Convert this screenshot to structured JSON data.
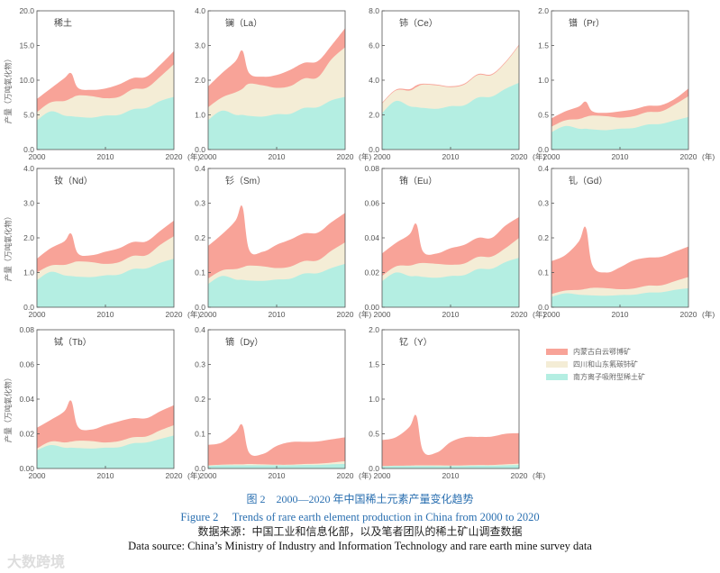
{
  "chart_data": {
    "type": "area",
    "stacked": true,
    "x": [
      2000,
      2002,
      2004,
      2005,
      2006,
      2008,
      2010,
      2012,
      2014,
      2016,
      2018,
      2020
    ],
    "x_tick_labels": [
      "2000",
      "2010",
      "2020"
    ],
    "x_unit": "(年)",
    "ylabel": "产量（万吨氧化物）",
    "legend": {
      "placement": "right",
      "entries": [
        {
          "key": "IM",
          "label": "内蒙古白云鄂博矿",
          "color": "#f8a398"
        },
        {
          "key": "SC",
          "label": "四川和山东氟碳铈矿",
          "color": "#f4edd6"
        },
        {
          "key": "S",
          "label": "南方离子吸附型稀土矿",
          "color": "#b4eee2"
        }
      ]
    },
    "panels": [
      {
        "title": "稀土",
        "ylim": [
          0,
          20
        ],
        "yticks": [
          "0.0",
          "5.0",
          "10.0",
          "15.0",
          "20.0"
        ],
        "S": [
          4.2,
          5.5,
          4.9,
          4.8,
          4.7,
          4.6,
          4.9,
          5.0,
          5.8,
          6.0,
          7.0,
          7.6
        ],
        "SC": [
          1.2,
          1.3,
          2.1,
          2.6,
          3.1,
          3.1,
          2.5,
          2.6,
          2.9,
          2.9,
          3.5,
          4.7
        ],
        "IM": [
          1.9,
          2.0,
          3.3,
          3.6,
          1.1,
          0.9,
          1.4,
          1.8,
          1.6,
          1.6,
          1.7,
          1.9
        ]
      },
      {
        "title": "镧（La）",
        "ylim": [
          0,
          4
        ],
        "yticks": [
          "0.0",
          "1.0",
          "2.0",
          "3.0",
          "4.0"
        ],
        "S": [
          0.85,
          1.12,
          1.0,
          1.0,
          0.97,
          0.95,
          1.02,
          1.03,
          1.2,
          1.22,
          1.42,
          1.52
        ],
        "SC": [
          0.37,
          0.38,
          0.65,
          0.75,
          0.93,
          0.9,
          0.76,
          0.8,
          0.85,
          0.86,
          1.18,
          1.43
        ],
        "IM": [
          0.6,
          0.7,
          0.9,
          1.1,
          0.3,
          0.25,
          0.37,
          0.47,
          0.45,
          0.47,
          0.4,
          0.55
        ]
      },
      {
        "title": "铈（Ce）",
        "ylim": [
          0,
          8
        ],
        "yticks": [
          "0.0",
          "2.0",
          "4.0",
          "6.0",
          "8.0"
        ],
        "S": [
          2.1,
          2.8,
          2.5,
          2.45,
          2.4,
          2.35,
          2.5,
          2.55,
          3.0,
          3.05,
          3.5,
          3.85
        ],
        "SC": [
          0.55,
          0.6,
          0.9,
          1.15,
          1.35,
          1.35,
          1.1,
          1.2,
          1.3,
          1.25,
          1.5,
          2.15
        ],
        "IM": [
          0.05,
          0.05,
          0.08,
          0.1,
          0.05,
          0.05,
          0.05,
          0.05,
          0.05,
          0.05,
          0.05,
          0.05
        ]
      },
      {
        "title": "镨（Pr）",
        "ylim": [
          0,
          2
        ],
        "yticks": [
          "0.0",
          "0.5",
          "1.0",
          "1.5",
          "2.0"
        ],
        "S": [
          0.25,
          0.34,
          0.3,
          0.3,
          0.29,
          0.28,
          0.3,
          0.31,
          0.36,
          0.37,
          0.42,
          0.47
        ],
        "SC": [
          0.08,
          0.08,
          0.14,
          0.17,
          0.2,
          0.2,
          0.16,
          0.17,
          0.18,
          0.18,
          0.23,
          0.3
        ],
        "IM": [
          0.12,
          0.13,
          0.18,
          0.22,
          0.06,
          0.05,
          0.09,
          0.1,
          0.09,
          0.09,
          0.08,
          0.11
        ]
      },
      {
        "title": "钕（Nd）",
        "ylim": [
          0,
          4
        ],
        "yticks": [
          "0.0",
          "1.0",
          "2.0",
          "3.0",
          "4.0"
        ],
        "S": [
          0.78,
          1.02,
          0.92,
          0.9,
          0.88,
          0.87,
          0.92,
          0.94,
          1.1,
          1.12,
          1.28,
          1.4
        ],
        "SC": [
          0.22,
          0.18,
          0.3,
          0.37,
          0.44,
          0.43,
          0.33,
          0.36,
          0.38,
          0.38,
          0.52,
          0.65
        ],
        "IM": [
          0.4,
          0.5,
          0.68,
          0.85,
          0.23,
          0.2,
          0.35,
          0.4,
          0.4,
          0.4,
          0.4,
          0.45
        ]
      },
      {
        "title": "钐（Sm）",
        "ylim": [
          0,
          0.4
        ],
        "yticks": [
          "0.0",
          "0.1",
          "0.2",
          "0.3",
          "0.4"
        ],
        "S": [
          0.067,
          0.09,
          0.08,
          0.079,
          0.077,
          0.076,
          0.08,
          0.082,
          0.097,
          0.098,
          0.113,
          0.125
        ],
        "SC": [
          0.016,
          0.016,
          0.03,
          0.036,
          0.043,
          0.042,
          0.033,
          0.035,
          0.036,
          0.037,
          0.05,
          0.062
        ],
        "IM": [
          0.094,
          0.104,
          0.14,
          0.175,
          0.045,
          0.042,
          0.067,
          0.078,
          0.08,
          0.08,
          0.082,
          0.085
        ]
      },
      {
        "title": "铕（Eu）",
        "ylim": [
          0,
          0.08
        ],
        "yticks": [
          "0.00",
          "0.02",
          "0.04",
          "0.06",
          "0.08"
        ],
        "S": [
          0.015,
          0.02,
          0.018,
          0.018,
          0.0175,
          0.017,
          0.018,
          0.0185,
          0.022,
          0.0222,
          0.026,
          0.0285
        ],
        "SC": [
          0.003,
          0.0035,
          0.006,
          0.007,
          0.008,
          0.008,
          0.0065,
          0.0067,
          0.007,
          0.007,
          0.008,
          0.0115
        ],
        "IM": [
          0.013,
          0.0135,
          0.018,
          0.023,
          0.0065,
          0.006,
          0.0095,
          0.0108,
          0.011,
          0.0108,
          0.013,
          0.012
        ]
      },
      {
        "title": "钆（Gd）",
        "ylim": [
          0,
          0.4
        ],
        "yticks": [
          "0.0",
          "0.1",
          "0.2",
          "0.3",
          "0.4"
        ],
        "S": [
          0.03,
          0.04,
          0.036,
          0.035,
          0.034,
          0.033,
          0.035,
          0.036,
          0.042,
          0.043,
          0.05,
          0.055
        ],
        "SC": [
          0.008,
          0.008,
          0.014,
          0.018,
          0.022,
          0.022,
          0.017,
          0.018,
          0.02,
          0.02,
          0.025,
          0.032
        ],
        "IM": [
          0.095,
          0.102,
          0.14,
          0.177,
          0.064,
          0.045,
          0.063,
          0.081,
          0.081,
          0.082,
          0.085,
          0.088
        ]
      },
      {
        "title": "铽（Tb）",
        "ylim": [
          0,
          0.08
        ],
        "yticks": [
          "0.00",
          "0.02",
          "0.04",
          "0.06",
          "0.08"
        ],
        "S": [
          0.0105,
          0.0135,
          0.012,
          0.012,
          0.0118,
          0.0115,
          0.012,
          0.0123,
          0.0145,
          0.015,
          0.017,
          0.019
        ],
        "SC": [
          0.001,
          0.002,
          0.003,
          0.0035,
          0.0042,
          0.0043,
          0.003,
          0.0035,
          0.0035,
          0.0035,
          0.005,
          0.006
        ],
        "IM": [
          0.012,
          0.0125,
          0.018,
          0.0235,
          0.008,
          0.0067,
          0.01,
          0.0114,
          0.011,
          0.0105,
          0.011,
          0.0115
        ]
      },
      {
        "title": "镝（Dy）",
        "ylim": [
          0,
          0.4
        ],
        "yticks": [
          "0.0",
          "0.1",
          "0.2",
          "0.3",
          "0.4"
        ],
        "S": [
          0.007,
          0.009,
          0.009,
          0.009,
          0.009,
          0.009,
          0.009,
          0.009,
          0.01,
          0.01,
          0.012,
          0.013
        ],
        "SC": [
          0.002,
          0.002,
          0.003,
          0.003,
          0.004,
          0.003,
          0.002,
          0.002,
          0.003,
          0.004,
          0.005,
          0.008
        ],
        "IM": [
          0.059,
          0.064,
          0.093,
          0.113,
          0.032,
          0.03,
          0.054,
          0.065,
          0.064,
          0.064,
          0.067,
          0.069
        ]
      },
      {
        "title": "钇（Y）",
        "ylim": [
          0,
          2
        ],
        "yticks": [
          "0.0",
          "0.5",
          "1.0",
          "1.5",
          "2.0"
        ],
        "S": [
          0.03,
          0.035,
          0.035,
          0.035,
          0.035,
          0.034,
          0.034,
          0.035,
          0.04,
          0.04,
          0.045,
          0.05
        ],
        "SC": [
          0.005,
          0.005,
          0.007,
          0.01,
          0.011,
          0.011,
          0.009,
          0.01,
          0.01,
          0.01,
          0.015,
          0.02
        ],
        "IM": [
          0.375,
          0.41,
          0.558,
          0.715,
          0.204,
          0.185,
          0.337,
          0.405,
          0.405,
          0.41,
          0.44,
          0.44
        ]
      }
    ]
  },
  "caption": {
    "cn_title": "图 2　2000—2020 年中国稀土元素产量变化趋势",
    "en_title": "Figure 2　 Trends of rare earth element production in China from 2000 to 2020",
    "cn_source": "数据来源：中国工业和信息化部，以及笔者团队的稀土矿山调查数据",
    "en_source": "Data source: China’s Ministry of Industry and Information Technology and rare earth mine survey data"
  },
  "watermark": "大数跨境"
}
